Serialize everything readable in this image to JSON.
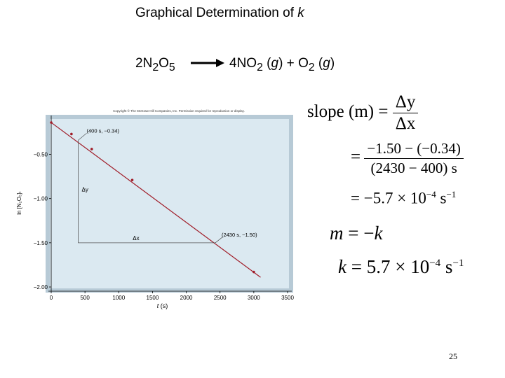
{
  "slide": {
    "title": "Graphical Determination of ",
    "title_var": "k",
    "reaction": {
      "reactant_coef": "2",
      "reactant_N": "N",
      "reactant_N_sub": "2",
      "reactant_O": "O",
      "reactant_O_sub": "5",
      "product1": "4NO",
      "product1_sub": "2",
      "product1_state_open": " (",
      "product1_state": "g",
      "product1_state_close": ") + ",
      "product2": "O",
      "product2_sub": "2",
      "product2_state_open": " (",
      "product2_state": "g",
      "product2_state_close": ")"
    },
    "page_number": "25"
  },
  "equations": {
    "slope_label": "slope",
    "m_paren": "(m)",
    "equals": "=",
    "delta_y": "Δy",
    "delta_x": "Δx",
    "numerator": "−1.50 − (−0.34)",
    "denominator": "(2430 − 400) s",
    "result_mantissa": "= −5.7 × 10",
    "result_exp": "−4",
    "result_unit": " s",
    "result_unit_exp": "−1",
    "m_eq_left": "m",
    "m_eq_mid": " = −",
    "m_eq_right": "k",
    "k_left": "k",
    "k_mid": " = 5.7 × 10",
    "k_exp": "−4",
    "k_unit": " s",
    "k_unit_exp": "−1"
  },
  "chart_data": {
    "type": "line",
    "copyright": "Copyright © The McGraw-Hill Companies, Inc. Permission required for reproduction or display.",
    "xlabel_var": "t",
    "xlabel_unit": " (s)",
    "ylabel": "ln [N₂O₅]ₜ",
    "xlim": [
      0,
      3500
    ],
    "ylim": [
      -2.0,
      -0.1
    ],
    "x_ticks": [
      "0",
      "500",
      "1000",
      "1500",
      "2000",
      "2500",
      "3000",
      "3500"
    ],
    "x_tick_values": [
      0,
      500,
      1000,
      1500,
      2000,
      2500,
      3000,
      3500
    ],
    "y_ticks": [
      "−0.50",
      "−1.00",
      "−1.50",
      "−2.00"
    ],
    "y_tick_values": [
      -0.5,
      -1.0,
      -1.5,
      -2.0
    ],
    "series": [
      {
        "points": [
          [
            0,
            -0.14
          ],
          [
            300,
            -0.27
          ],
          [
            600,
            -0.44
          ],
          [
            1200,
            -0.79
          ],
          [
            3000,
            -1.83
          ]
        ],
        "fit_line": [
          [
            0,
            -0.14
          ],
          [
            3100,
            -1.89
          ]
        ],
        "color": "#a01c28"
      }
    ],
    "annotations": {
      "p1_label": "(400 s, −0.34)",
      "p1": [
        400,
        -0.34
      ],
      "p2_label": "(2430 s, −1.50)",
      "p2": [
        2430,
        -1.5
      ],
      "dy_label": "Δy",
      "dx_label": "Δx"
    },
    "colors": {
      "plot_bg": "#dbe9f1",
      "frame": "#b7cad6",
      "line": "#a01c28",
      "triangle": "#555555"
    }
  }
}
